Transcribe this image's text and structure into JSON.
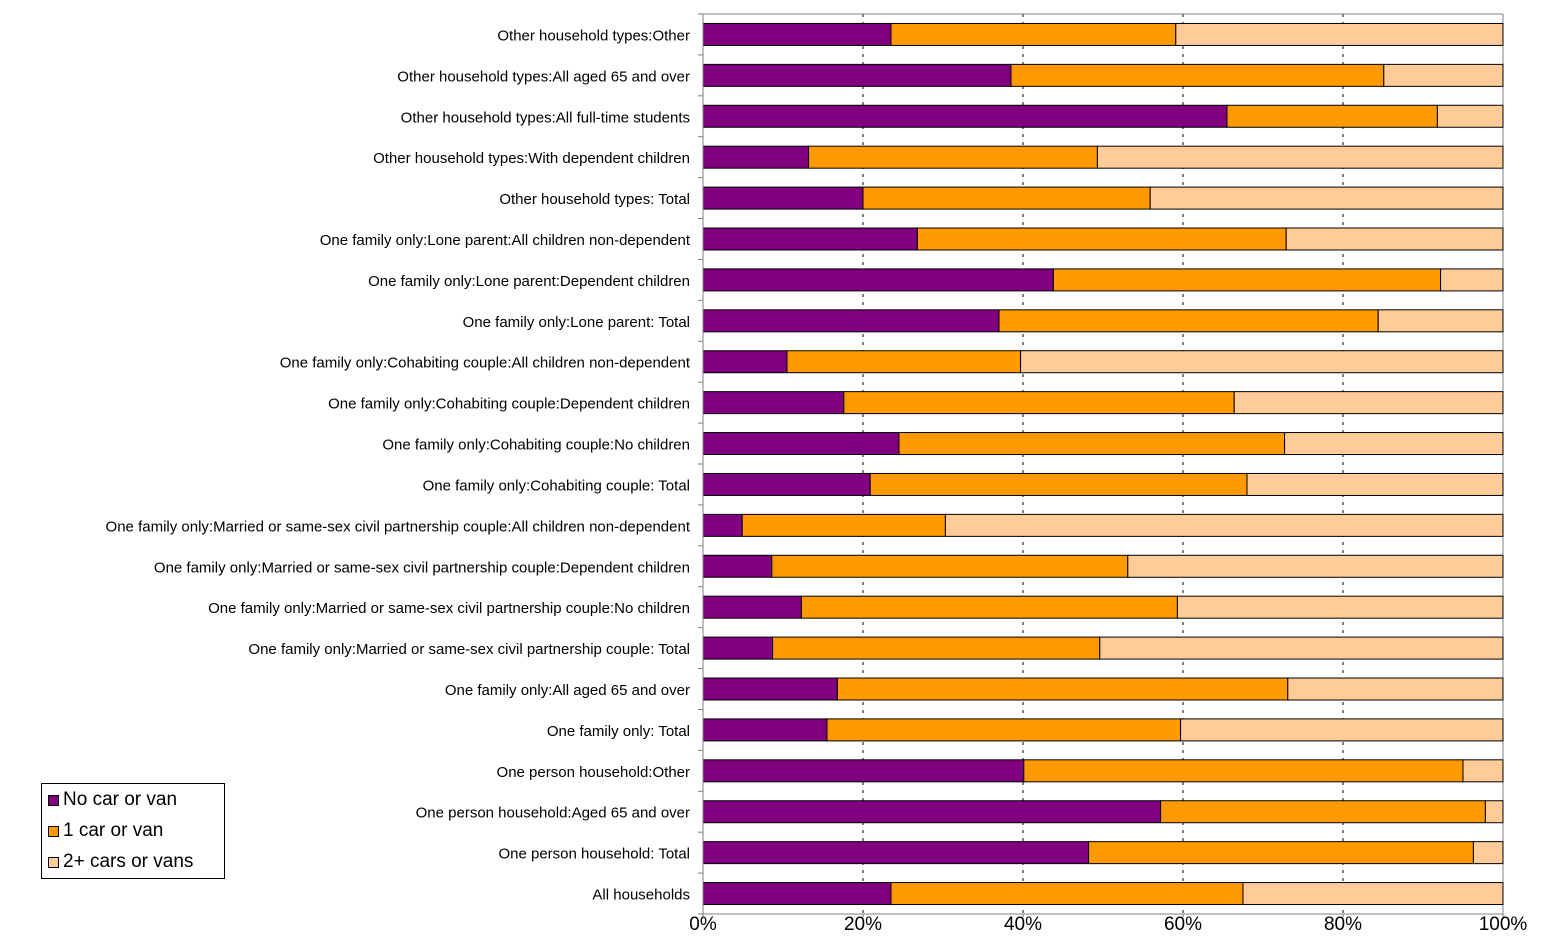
{
  "colors": {
    "no_car": "#800080",
    "one_car": "#FF9900",
    "two_plus": "#FFCC99",
    "axis": "#808080",
    "outline": "#000000"
  },
  "chart_data": {
    "type": "bar",
    "orientation": "horizontal",
    "stacked": "percent",
    "categories": [
      "All households",
      "One person household: Total",
      "One person household:Aged 65 and over",
      "One person household:Other",
      "One family only: Total",
      "One family only:All aged 65 and over",
      "One family only:Married or same-sex civil partnership couple: Total",
      "One family only:Married or same-sex civil partnership couple:No children",
      "One family only:Married or same-sex civil partnership couple:Dependent children",
      "One family only:Married or same-sex civil partnership couple:All children non-dependent",
      "One family only:Cohabiting couple: Total",
      "One family only:Cohabiting couple:No children",
      "One family only:Cohabiting couple:Dependent children",
      "One family only:Cohabiting couple:All children non-dependent",
      "One family only:Lone parent: Total",
      "One family only:Lone parent:Dependent children",
      "One family only:Lone parent:All children non-dependent",
      "Other household types: Total",
      "Other household types:With dependent children",
      "Other household types:All full-time students",
      "Other household types:All aged 65 and over",
      "Other household types:Other"
    ],
    "series": [
      {
        "name": "No car or van",
        "values": [
          23.5,
          48.2,
          57.2,
          40.1,
          15.5,
          16.8,
          8.7,
          12.3,
          8.6,
          4.9,
          20.9,
          24.5,
          17.6,
          10.5,
          37.0,
          43.8,
          26.8,
          20.0,
          13.2,
          65.5,
          38.5,
          23.5
        ]
      },
      {
        "name": "1 car or van",
        "values": [
          44.0,
          48.1,
          40.6,
          54.9,
          44.2,
          56.3,
          40.9,
          47.0,
          44.5,
          25.4,
          47.1,
          48.2,
          48.8,
          29.2,
          47.4,
          48.4,
          46.1,
          35.9,
          36.1,
          26.3,
          46.6,
          35.6
        ]
      },
      {
        "name": "2+ cars or vans",
        "values": [
          32.5,
          3.7,
          2.2,
          5.0,
          40.3,
          26.9,
          50.4,
          40.7,
          46.9,
          69.7,
          32.0,
          27.3,
          33.6,
          60.3,
          15.6,
          7.8,
          27.1,
          44.1,
          50.7,
          8.2,
          14.9,
          40.9
        ]
      }
    ],
    "x_ticks": [
      "0%",
      "20%",
      "40%",
      "60%",
      "80%",
      "100%"
    ],
    "xlim": [
      0,
      100
    ],
    "legend_position": "bottom-left",
    "grid": "vertical dashed"
  },
  "legend": {
    "items": [
      {
        "label": "No car or van"
      },
      {
        "label": "1 car or van"
      },
      {
        "label": "2+ cars or vans"
      }
    ]
  }
}
